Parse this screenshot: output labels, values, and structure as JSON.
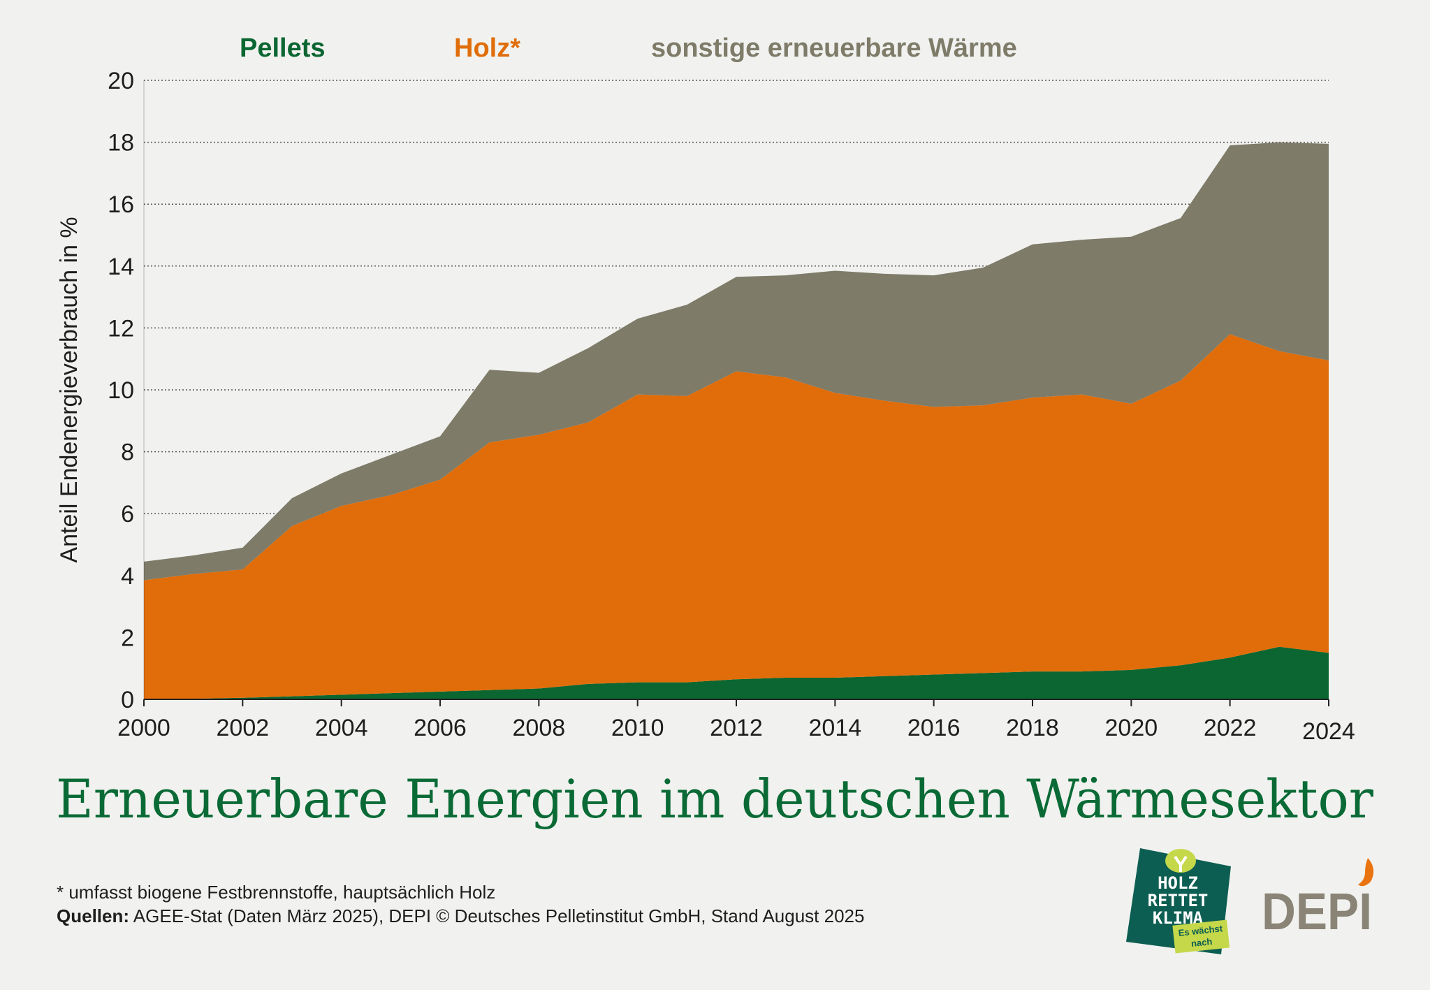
{
  "chart_data": {
    "type": "area",
    "stacked": true,
    "title": "Erneuerbare Energien im deutschen Wärmesektor",
    "xlabel": "",
    "ylabel": "Anteil Endenergieverbrauch in %",
    "xlim": [
      2000,
      2024
    ],
    "ylim": [
      0,
      20
    ],
    "yticks": [
      0,
      2,
      4,
      6,
      8,
      10,
      12,
      14,
      16,
      18,
      20
    ],
    "xticks": [
      2000,
      2002,
      2004,
      2006,
      2008,
      2010,
      2012,
      2014,
      2016,
      2018,
      2020,
      2022,
      2024
    ],
    "grid": "horizontal dotted",
    "legend_position": "top",
    "x": [
      2000,
      2001,
      2002,
      2003,
      2004,
      2005,
      2006,
      2007,
      2008,
      2009,
      2010,
      2011,
      2012,
      2013,
      2014,
      2015,
      2016,
      2017,
      2018,
      2019,
      2020,
      2021,
      2022,
      2023,
      2024
    ],
    "series": [
      {
        "name": "Pellets",
        "color": "#0b6631",
        "values": [
          0.0,
          0.02,
          0.05,
          0.1,
          0.15,
          0.2,
          0.25,
          0.3,
          0.35,
          0.5,
          0.55,
          0.55,
          0.65,
          0.7,
          0.7,
          0.75,
          0.8,
          0.85,
          0.9,
          0.9,
          0.95,
          1.1,
          1.35,
          1.7,
          1.5
        ]
      },
      {
        "name": "Holz*",
        "color": "#e06d0a",
        "values": [
          3.85,
          4.03,
          4.15,
          5.5,
          6.1,
          6.4,
          6.85,
          8.0,
          8.2,
          8.45,
          9.3,
          9.25,
          9.95,
          9.7,
          9.2,
          8.9,
          8.65,
          8.65,
          8.85,
          8.95,
          8.6,
          9.2,
          10.45,
          9.55,
          9.45
        ]
      },
      {
        "name": "sonstige erneuerbare Wärme",
        "color": "#7e7b69",
        "values": [
          0.6,
          0.6,
          0.7,
          0.9,
          1.05,
          1.3,
          1.4,
          2.35,
          2.0,
          2.4,
          2.45,
          2.95,
          3.05,
          3.3,
          3.95,
          4.1,
          4.25,
          4.45,
          4.95,
          5.0,
          5.4,
          5.25,
          6.1,
          6.75,
          7.0
        ]
      }
    ]
  },
  "footnote": "* umfasst biogene Festbrennstoffe, hauptsächlich Holz",
  "sources_label": "Quellen:",
  "sources_text": " AGEE-Stat (Daten März 2025), DEPI © Deutsches Pelletinstitut GmbH, Stand August 2025",
  "logos": {
    "holz_rettet_klima": [
      "HOLZ",
      "RETTET",
      "KLIMA",
      "Es wächst",
      "nach"
    ],
    "depi": "DEPI"
  },
  "colors": {
    "background": "#f1f2ef",
    "title": "#0a6a35"
  }
}
